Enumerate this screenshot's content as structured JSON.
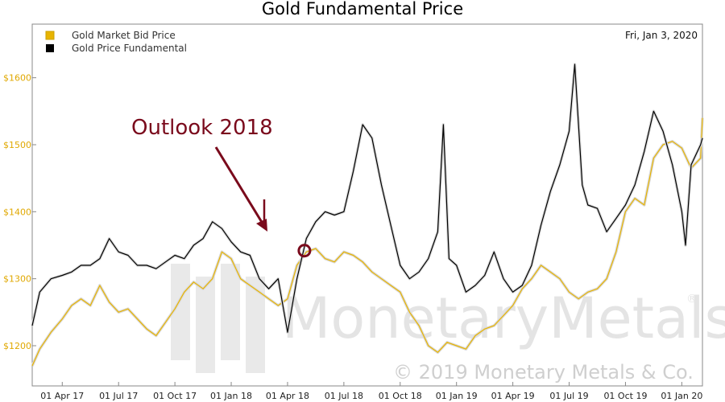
{
  "chart_data": {
    "type": "line",
    "title": "Gold Fundamental Price",
    "date_label": "Fri, Jan 3, 2020",
    "annotation": "Outlook 2018",
    "watermark": {
      "brand": "MonetaryMetals",
      "registered": "®",
      "copyright": "© 2019 Monetary Metals & Co."
    },
    "ylim": [
      1140,
      1680
    ],
    "y_ticks": [
      {
        "value": 1200,
        "label": "$1200"
      },
      {
        "value": 1300,
        "label": "$1300"
      },
      {
        "value": 1400,
        "label": "$1400"
      },
      {
        "value": 1500,
        "label": "$1500"
      },
      {
        "value": 1600,
        "label": "$1600"
      }
    ],
    "x_ticks": [
      "01 Apr 17",
      "01 Jul 17",
      "01 Oct 17",
      "01 Jan 18",
      "01 Apr 18",
      "01 Jul 18",
      "01 Oct 18",
      "01 Jan 19",
      "01 Apr 19",
      "01 Jul 19",
      "01 Oct 19",
      "01 Jan 20"
    ],
    "x_range_months": [
      -1.6,
      34.1
    ],
    "annotation_point": {
      "month": 12.9,
      "value": 1342
    },
    "series": [
      {
        "name": "Gold Market Bid Price",
        "color": "#e8b400",
        "points": [
          [
            -1.6,
            1170
          ],
          [
            -1.2,
            1195
          ],
          [
            -0.6,
            1220
          ],
          [
            0,
            1240
          ],
          [
            0.5,
            1260
          ],
          [
            1,
            1270
          ],
          [
            1.5,
            1260
          ],
          [
            2,
            1290
          ],
          [
            2.5,
            1265
          ],
          [
            3,
            1250
          ],
          [
            3.5,
            1255
          ],
          [
            4,
            1240
          ],
          [
            4.5,
            1225
          ],
          [
            5,
            1215
          ],
          [
            5.5,
            1235
          ],
          [
            6,
            1255
          ],
          [
            6.5,
            1280
          ],
          [
            7,
            1295
          ],
          [
            7.5,
            1285
          ],
          [
            8,
            1300
          ],
          [
            8.5,
            1340
          ],
          [
            9,
            1330
          ],
          [
            9.5,
            1300
          ],
          [
            10,
            1290
          ],
          [
            10.5,
            1280
          ],
          [
            11,
            1270
          ],
          [
            11.5,
            1260
          ],
          [
            12,
            1270
          ],
          [
            12.3,
            1300
          ],
          [
            12.5,
            1320
          ],
          [
            13,
            1340
          ],
          [
            13.5,
            1345
          ],
          [
            14,
            1330
          ],
          [
            14.5,
            1325
          ],
          [
            15,
            1340
          ],
          [
            15.5,
            1335
          ],
          [
            16,
            1325
          ],
          [
            16.5,
            1310
          ],
          [
            17,
            1300
          ],
          [
            17.5,
            1290
          ],
          [
            18,
            1280
          ],
          [
            18.5,
            1250
          ],
          [
            19,
            1230
          ],
          [
            19.5,
            1200
          ],
          [
            20,
            1190
          ],
          [
            20.5,
            1205
          ],
          [
            21,
            1200
          ],
          [
            21.5,
            1195
          ],
          [
            22,
            1215
          ],
          [
            22.5,
            1225
          ],
          [
            23,
            1230
          ],
          [
            23.5,
            1245
          ],
          [
            24,
            1260
          ],
          [
            24.5,
            1285
          ],
          [
            25,
            1300
          ],
          [
            25.5,
            1320
          ],
          [
            26,
            1310
          ],
          [
            26.5,
            1300
          ],
          [
            27,
            1280
          ],
          [
            27.5,
            1270
          ],
          [
            28,
            1280
          ],
          [
            28.5,
            1285
          ],
          [
            29,
            1300
          ],
          [
            29.5,
            1340
          ],
          [
            30,
            1400
          ],
          [
            30.5,
            1420
          ],
          [
            31,
            1410
          ],
          [
            31.5,
            1480
          ],
          [
            32,
            1500
          ],
          [
            32.5,
            1505
          ],
          [
            33,
            1495
          ],
          [
            33.5,
            1465
          ],
          [
            34,
            1480
          ],
          [
            34.1,
            1540
          ]
        ]
      },
      {
        "name": "Gold Price Fundamental",
        "color": "#000000",
        "points": [
          [
            -1.6,
            1230
          ],
          [
            -1.2,
            1280
          ],
          [
            -0.6,
            1300
          ],
          [
            0,
            1305
          ],
          [
            0.5,
            1310
          ],
          [
            1,
            1320
          ],
          [
            1.5,
            1320
          ],
          [
            2,
            1330
          ],
          [
            2.5,
            1360
          ],
          [
            3,
            1340
          ],
          [
            3.5,
            1335
          ],
          [
            4,
            1320
          ],
          [
            4.5,
            1320
          ],
          [
            5,
            1315
          ],
          [
            5.5,
            1325
          ],
          [
            6,
            1335
          ],
          [
            6.5,
            1330
          ],
          [
            7,
            1350
          ],
          [
            7.5,
            1360
          ],
          [
            8,
            1385
          ],
          [
            8.5,
            1375
          ],
          [
            9,
            1355
          ],
          [
            9.5,
            1340
          ],
          [
            10,
            1335
          ],
          [
            10.5,
            1300
          ],
          [
            11,
            1285
          ],
          [
            11.5,
            1300
          ],
          [
            12,
            1220
          ],
          [
            12.5,
            1300
          ],
          [
            13,
            1360
          ],
          [
            13.5,
            1385
          ],
          [
            14,
            1400
          ],
          [
            14.5,
            1395
          ],
          [
            15,
            1400
          ],
          [
            15.5,
            1460
          ],
          [
            16,
            1530
          ],
          [
            16.5,
            1510
          ],
          [
            17,
            1440
          ],
          [
            17.5,
            1380
          ],
          [
            18,
            1320
          ],
          [
            18.5,
            1300
          ],
          [
            19,
            1310
          ],
          [
            19.5,
            1330
          ],
          [
            20,
            1370
          ],
          [
            20.3,
            1530
          ],
          [
            20.6,
            1330
          ],
          [
            21,
            1320
          ],
          [
            21.5,
            1280
          ],
          [
            22,
            1290
          ],
          [
            22.5,
            1305
          ],
          [
            23,
            1340
          ],
          [
            23.5,
            1300
          ],
          [
            24,
            1280
          ],
          [
            24.5,
            1290
          ],
          [
            25,
            1320
          ],
          [
            25.5,
            1380
          ],
          [
            26,
            1430
          ],
          [
            26.5,
            1470
          ],
          [
            27,
            1520
          ],
          [
            27.3,
            1620
          ],
          [
            27.7,
            1440
          ],
          [
            28,
            1410
          ],
          [
            28.5,
            1405
          ],
          [
            29,
            1370
          ],
          [
            29.5,
            1390
          ],
          [
            30,
            1410
          ],
          [
            30.5,
            1440
          ],
          [
            31,
            1490
          ],
          [
            31.5,
            1550
          ],
          [
            32,
            1520
          ],
          [
            32.5,
            1470
          ],
          [
            33,
            1400
          ],
          [
            33.2,
            1350
          ],
          [
            33.5,
            1470
          ],
          [
            34,
            1500
          ],
          [
            34.1,
            1510
          ]
        ]
      }
    ]
  }
}
